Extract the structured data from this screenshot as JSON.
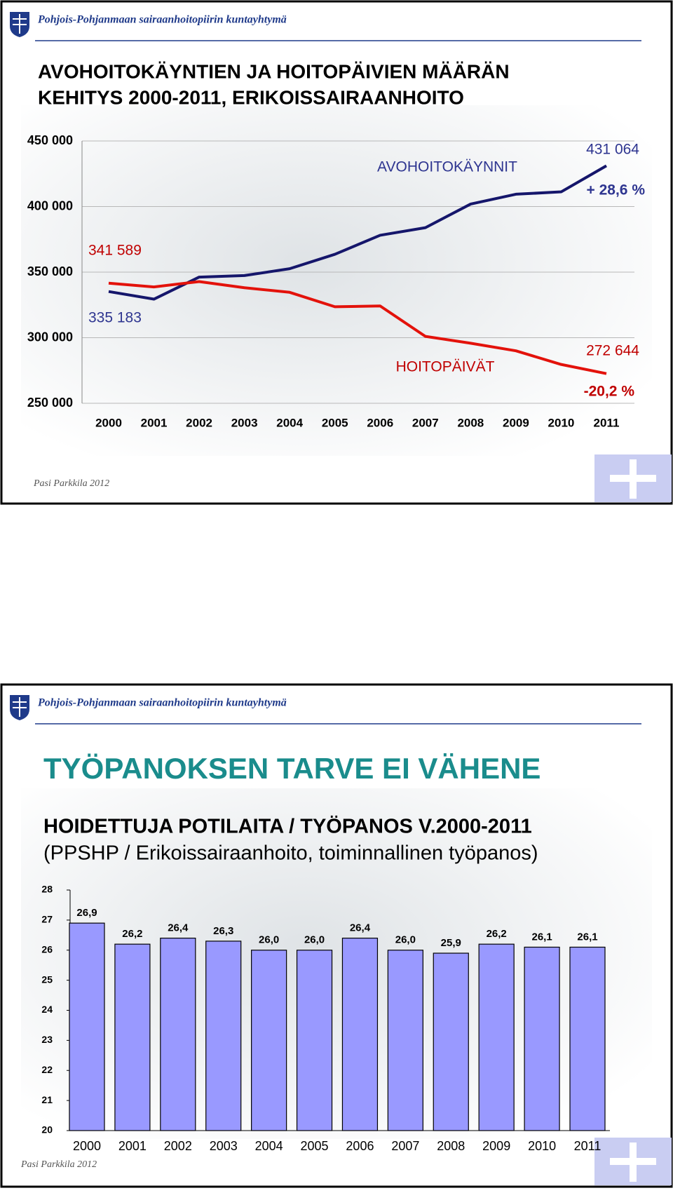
{
  "chart_data": [
    {
      "type": "line",
      "header": "Pohjois-Pohjanmaan sairaanhoitopiirin kuntayhtymä",
      "title": [
        "AVOHOITOKÄYNTIEN JA HOITOPÄIVIEN MÄÄRÄN",
        "KEHITYS 2000-2011, ERIKOISSAIRAANHOITO"
      ],
      "categories": [
        "2000",
        "2001",
        "2002",
        "2003",
        "2004",
        "2005",
        "2006",
        "2007",
        "2008",
        "2009",
        "2010",
        "2011"
      ],
      "ylim": [
        250000,
        450000
      ],
      "yticks": [
        {
          "value": 250000,
          "label": "250 000"
        },
        {
          "value": 300000,
          "label": "300 000"
        },
        {
          "value": 350000,
          "label": "350 000"
        },
        {
          "value": 400000,
          "label": "400 000"
        },
        {
          "value": 450000,
          "label": "450 000"
        }
      ],
      "grid": true,
      "series": [
        {
          "name": "AVOHOITOKÄYNNIT",
          "color": "#15166b",
          "values": [
            335183,
            329400,
            346200,
            347400,
            352600,
            363600,
            378100,
            383900,
            401900,
            409400,
            411200,
            431064
          ],
          "value_labels": [
            "335 183",
            null,
            null,
            null,
            null,
            null,
            null,
            null,
            null,
            null,
            null,
            "431 064"
          ]
        },
        {
          "name": "HOITOPÄIVÄT",
          "color": "#e3120b",
          "values": [
            341589,
            338700,
            342800,
            338100,
            334600,
            323600,
            324200,
            301000,
            295800,
            290000,
            279600,
            272644
          ],
          "value_labels": [
            "341 589",
            null,
            null,
            null,
            null,
            null,
            null,
            null,
            null,
            null,
            null,
            "272 644"
          ]
        }
      ],
      "annotations": [
        "+ 28,6 %",
        "-20,2 %"
      ],
      "footer": "Pasi Parkkila 2012"
    },
    {
      "type": "bar",
      "header": "Pohjois-Pohjanmaan sairaanhoitopiirin kuntayhtymä",
      "title": "TYÖPANOKSEN TARVE EI VÄHENE",
      "subtitle": [
        "HOIDETTUJA POTILAITA / TYÖPANOS V.2000-2011",
        "(PPSHP / Erikoissairaanhoito, toiminnallinen työpanos)"
      ],
      "categories": [
        "2000",
        "2001",
        "2002",
        "2003",
        "2004",
        "2005",
        "2006",
        "2007",
        "2008",
        "2009",
        "2010",
        "2011"
      ],
      "values": [
        26.9,
        26.2,
        26.4,
        26.3,
        26.0,
        26.0,
        26.4,
        26.0,
        25.9,
        26.2,
        26.1,
        26.1
      ],
      "value_labels": [
        "26,9",
        "26,2",
        "26,4",
        "26,3",
        "26,0",
        "26,0",
        "26,4",
        "26,0",
        "25,9",
        "26,2",
        "26,1",
        "26,1"
      ],
      "color": "#9999ff",
      "ylim": [
        20,
        28
      ],
      "yticks": [
        20,
        21,
        22,
        23,
        24,
        25,
        26,
        27,
        28
      ],
      "grid": false,
      "footer": "Pasi Parkkila 2012"
    }
  ]
}
